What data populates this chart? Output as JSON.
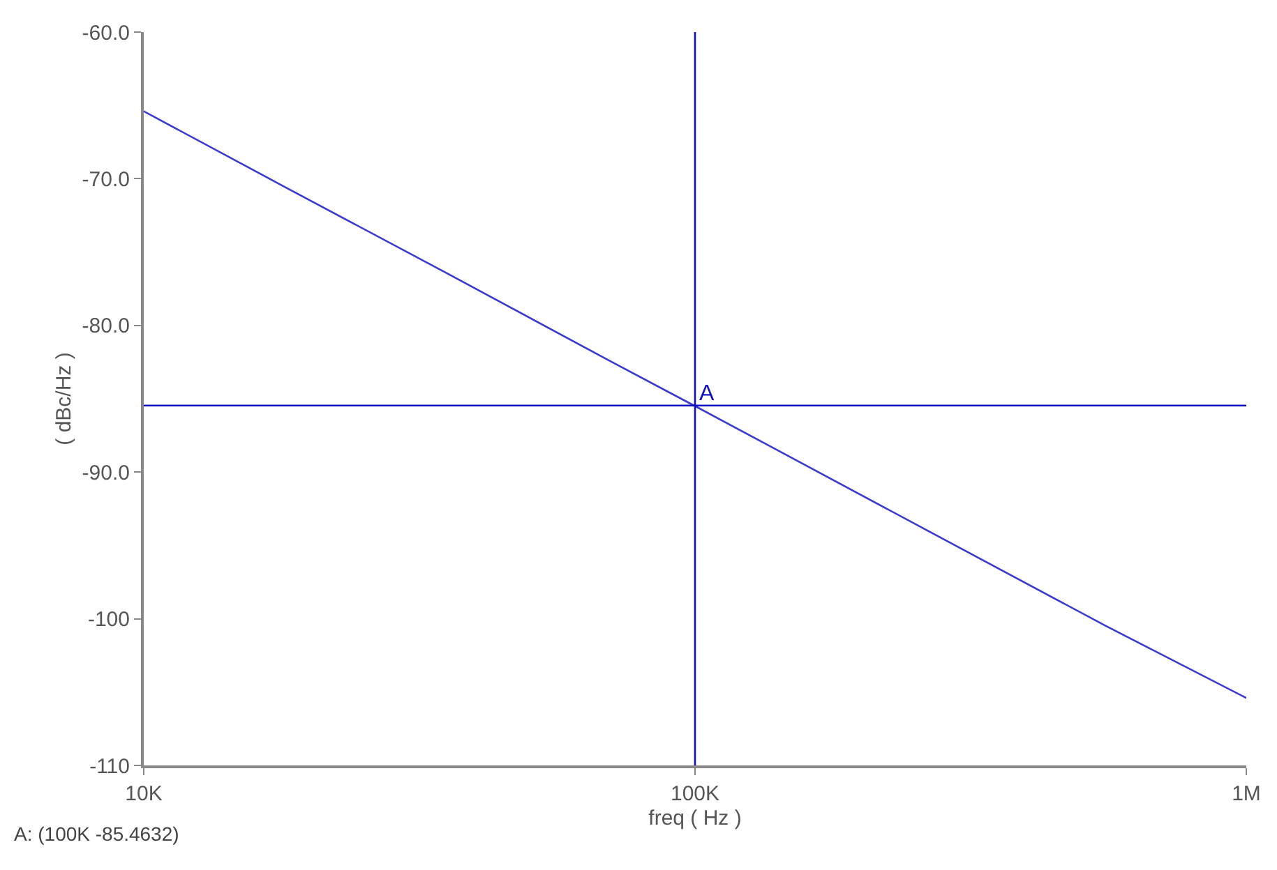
{
  "chart_data": {
    "type": "line",
    "xlabel": "freq ( Hz )",
    "ylabel": "( dBc/Hz )",
    "x": [
      10000,
      17700,
      35700,
      70700,
      100000,
      141000,
      280000,
      557000,
      1000000
    ],
    "series": [
      {
        "color": "#3a3ad0",
        "values": [
          -65.4,
          -70.4,
          -76.5,
          -82.5,
          -85.5,
          -88.5,
          -94.5,
          -100.5,
          -105.4
        ]
      }
    ],
    "log": "x",
    "xlim": [
      10000,
      1000000
    ],
    "xticks": [
      {
        "value": 10000,
        "label": "10K"
      },
      {
        "value": 100000,
        "label": "100K"
      },
      {
        "value": 1000000,
        "label": "1M"
      }
    ],
    "ylim": [
      -110,
      -60
    ],
    "yticks": [
      {
        "value": -60,
        "label": "-60.0"
      },
      {
        "value": -70,
        "label": "-70.0"
      },
      {
        "value": -80,
        "label": "-80.0"
      },
      {
        "value": -90,
        "label": "-90.0"
      },
      -100,
      -110
    ],
    "ref_lines": [
      {
        "axis": "x",
        "value": 100000,
        "color": "#1010c0"
      },
      {
        "axis": "y",
        "value": -85.4632,
        "label": "A",
        "color": "#1010c0"
      }
    ],
    "annotations": [
      "A: (100K -85.4632)"
    ],
    "grid": false,
    "marker": "none",
    "line_style": "solid"
  }
}
